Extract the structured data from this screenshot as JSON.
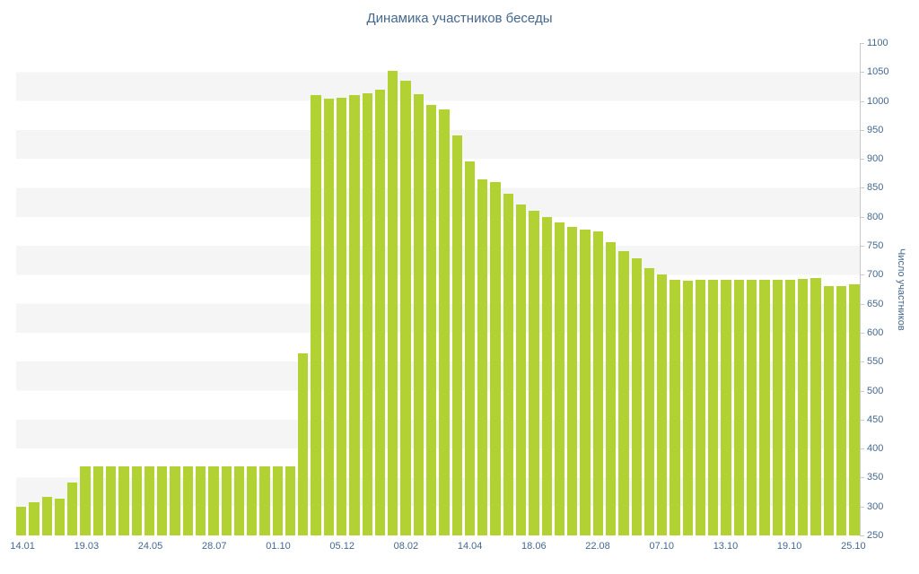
{
  "colors": {
    "bar": "#b2d234",
    "text": "#45688e",
    "stripe": "#f5f5f5",
    "axis": "#c9c9c9"
  },
  "chart_data": {
    "type": "bar",
    "title": "Динамика участников беседы",
    "xlabel": "",
    "ylabel": "Число участников",
    "ylim": [
      250,
      1100
    ],
    "y_step": 50,
    "grid": "horizontal-stripes",
    "legend": "none",
    "x_label_every": 5,
    "x_tick_labels": [
      "14.01",
      "19.03",
      "24.05",
      "28.07",
      "01.10",
      "05.12",
      "08.02",
      "14.04",
      "18.06",
      "22.08",
      "07.10",
      "13.10",
      "19.10",
      "25.10"
    ],
    "values": [
      300,
      307,
      316,
      313,
      341,
      370,
      370,
      370,
      370,
      370,
      370,
      370,
      370,
      370,
      370,
      370,
      370,
      370,
      370,
      370,
      370,
      370,
      565,
      1010,
      1004,
      1006,
      1010,
      1014,
      1020,
      1052,
      1035,
      1012,
      993,
      985,
      940,
      895,
      865,
      860,
      840,
      822,
      810,
      800,
      790,
      782,
      778,
      775,
      756,
      741,
      728,
      712,
      700,
      692,
      690,
      691,
      691,
      692,
      692,
      692,
      692,
      692,
      692,
      693,
      694,
      681,
      681,
      684
    ]
  }
}
